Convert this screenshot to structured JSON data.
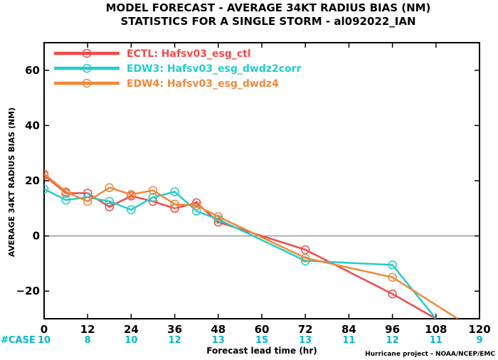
{
  "chart_data": {
    "type": "line",
    "title": "MODEL FORECAST - AVERAGE 34KT RADIUS BIAS (NM)",
    "subtitle": "STATISTICS FOR A SINGLE STORM - al092022_IAN",
    "xlabel": "Forecast lead time (hr)",
    "ylabel": "AVERAGE 34KT RADIUS BIAS (NM)",
    "xlim": [
      0,
      120
    ],
    "ylim": [
      -30,
      70
    ],
    "xticks": [
      0,
      12,
      24,
      36,
      48,
      60,
      72,
      84,
      96,
      108,
      120
    ],
    "yticks": [
      -20,
      0,
      20,
      40,
      60
    ],
    "reference_line": 0,
    "legend_position": "top-left",
    "series": [
      {
        "name": "ECTL: Hafsv03_esg_ctl",
        "color": "#f04a4a",
        "x": [
          0,
          6,
          12,
          18,
          24,
          30,
          36,
          42,
          48,
          72,
          96,
          108
        ],
        "y": [
          22,
          15.5,
          15.5,
          10.5,
          14.5,
          12.5,
          10,
          12,
          5,
          -5,
          -21,
          -30
        ]
      },
      {
        "name": "EDW3: Hafsv03_esg_dwdz2corr",
        "color": "#22cccc",
        "x": [
          0,
          6,
          12,
          18,
          24,
          30,
          36,
          42,
          48,
          72,
          96,
          108
        ],
        "y": [
          17,
          13,
          14,
          12.5,
          9.5,
          14,
          16,
          9,
          6,
          -9,
          -10.5,
          -30
        ]
      },
      {
        "name": "EDW4: Hafsv03_esg_dwdz4",
        "color": "#f0883a",
        "x": [
          0,
          6,
          12,
          18,
          24,
          30,
          36,
          42,
          48,
          72,
          96,
          114
        ],
        "y": [
          22.5,
          16,
          12.5,
          17.5,
          15,
          16.5,
          11.5,
          11,
          7,
          -8,
          -15,
          -30
        ]
      }
    ],
    "cases": {
      "label": "#CASE",
      "x": [
        0,
        12,
        24,
        36,
        48,
        60,
        72,
        84,
        96,
        108,
        120
      ],
      "values": [
        "10",
        "8",
        "10",
        "12",
        "13",
        "15",
        "13",
        "11",
        "12",
        "11",
        "9"
      ]
    },
    "credit": "Hurricane project - NOAA/NCEP/EMC"
  }
}
